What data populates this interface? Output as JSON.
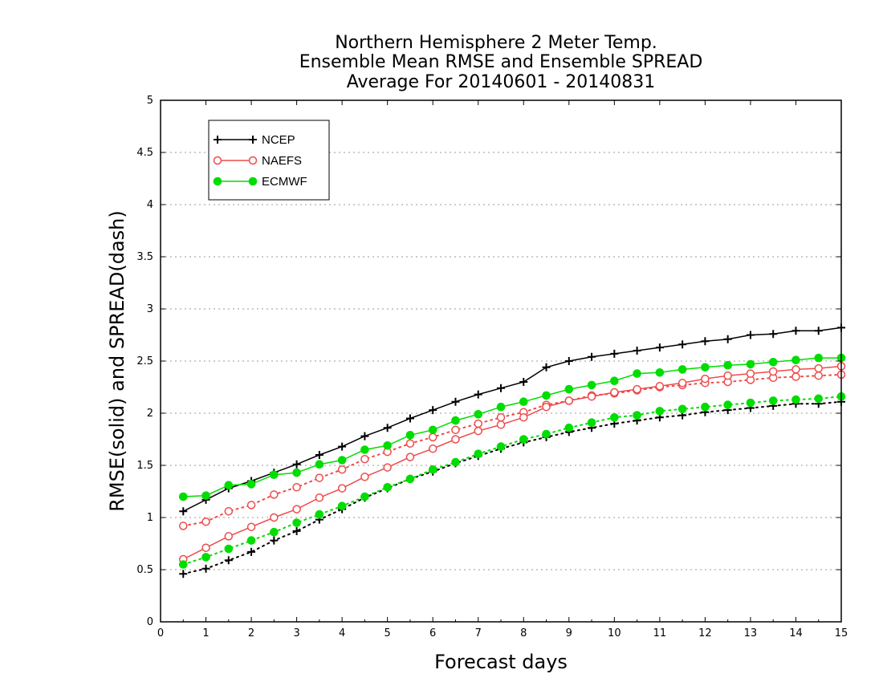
{
  "chart_data": {
    "type": "line",
    "title_lines": [
      "Northern Hemisphere 2 Meter Temp.",
      "Ensemble Mean RMSE and Ensemble SPREAD",
      "Average For 20140601 - 20140831"
    ],
    "xlabel": "Forecast days",
    "ylabel": "RMSE(solid) and SPREAD(dash)",
    "xlim": [
      0,
      15
    ],
    "ylim": [
      0,
      5
    ],
    "x_ticks": [
      "0",
      "1",
      "2",
      "3",
      "4",
      "5",
      "6",
      "7",
      "8",
      "9",
      "10",
      "11",
      "12",
      "13",
      "14",
      "15"
    ],
    "y_ticks": [
      "0",
      "0.5",
      "1",
      "1.5",
      "2",
      "2.5",
      "3",
      "3.5",
      "4",
      "4.5",
      "5"
    ],
    "grid": "horizontal dotted",
    "legend_position": "top-left",
    "x": [
      0.5,
      1,
      1.5,
      2,
      2.5,
      3,
      3.5,
      4,
      4.5,
      5,
      5.5,
      6,
      6.5,
      7,
      7.5,
      8,
      8.5,
      9,
      9.5,
      10,
      10.5,
      11,
      11.5,
      12,
      12.5,
      13,
      13.5,
      14,
      14.5,
      15
    ],
    "series": [
      {
        "name": "NCEP",
        "color": "#000000",
        "marker": "plus",
        "rmse": [
          1.06,
          1.17,
          1.28,
          1.35,
          1.43,
          1.51,
          1.6,
          1.68,
          1.78,
          1.86,
          1.95,
          2.03,
          2.11,
          2.18,
          2.24,
          2.3,
          2.44,
          2.5,
          2.54,
          2.57,
          2.6,
          2.63,
          2.66,
          2.69,
          2.71,
          2.75,
          2.76,
          2.79,
          2.79,
          2.82
        ],
        "spread": [
          0.46,
          0.51,
          0.59,
          0.67,
          0.78,
          0.87,
          0.98,
          1.08,
          1.19,
          1.28,
          1.37,
          1.44,
          1.52,
          1.59,
          1.66,
          1.72,
          1.77,
          1.82,
          1.86,
          1.9,
          1.93,
          1.96,
          1.98,
          2.01,
          2.03,
          2.05,
          2.07,
          2.09,
          2.09,
          2.11
        ]
      },
      {
        "name": "NAEFS",
        "color": "#ee4b4b",
        "marker": "open-circle",
        "rmse": [
          0.6,
          0.71,
          0.82,
          0.91,
          1.0,
          1.08,
          1.19,
          1.28,
          1.39,
          1.48,
          1.58,
          1.66,
          1.75,
          1.83,
          1.89,
          1.96,
          2.06,
          2.12,
          2.16,
          2.2,
          2.23,
          2.26,
          2.29,
          2.33,
          2.36,
          2.38,
          2.4,
          2.42,
          2.43,
          2.45
        ],
        "spread": [
          0.92,
          0.96,
          1.06,
          1.12,
          1.22,
          1.29,
          1.38,
          1.46,
          1.56,
          1.63,
          1.71,
          1.77,
          1.84,
          1.9,
          1.96,
          2.01,
          2.08,
          2.12,
          2.17,
          2.19,
          2.22,
          2.25,
          2.27,
          2.29,
          2.3,
          2.32,
          2.34,
          2.35,
          2.36,
          2.37
        ]
      },
      {
        "name": "ECMWF",
        "color": "#00dd00",
        "marker": "filled-circle",
        "rmse": [
          1.2,
          1.21,
          1.31,
          1.32,
          1.41,
          1.43,
          1.51,
          1.55,
          1.65,
          1.69,
          1.79,
          1.84,
          1.93,
          1.99,
          2.06,
          2.11,
          2.17,
          2.23,
          2.27,
          2.31,
          2.38,
          2.39,
          2.42,
          2.44,
          2.46,
          2.47,
          2.49,
          2.51,
          2.53,
          2.53
        ],
        "spread": [
          0.55,
          0.62,
          0.7,
          0.78,
          0.86,
          0.95,
          1.03,
          1.11,
          1.2,
          1.29,
          1.37,
          1.46,
          1.53,
          1.61,
          1.68,
          1.75,
          1.8,
          1.86,
          1.91,
          1.96,
          1.98,
          2.02,
          2.04,
          2.06,
          2.08,
          2.1,
          2.12,
          2.13,
          2.14,
          2.16
        ]
      }
    ]
  }
}
